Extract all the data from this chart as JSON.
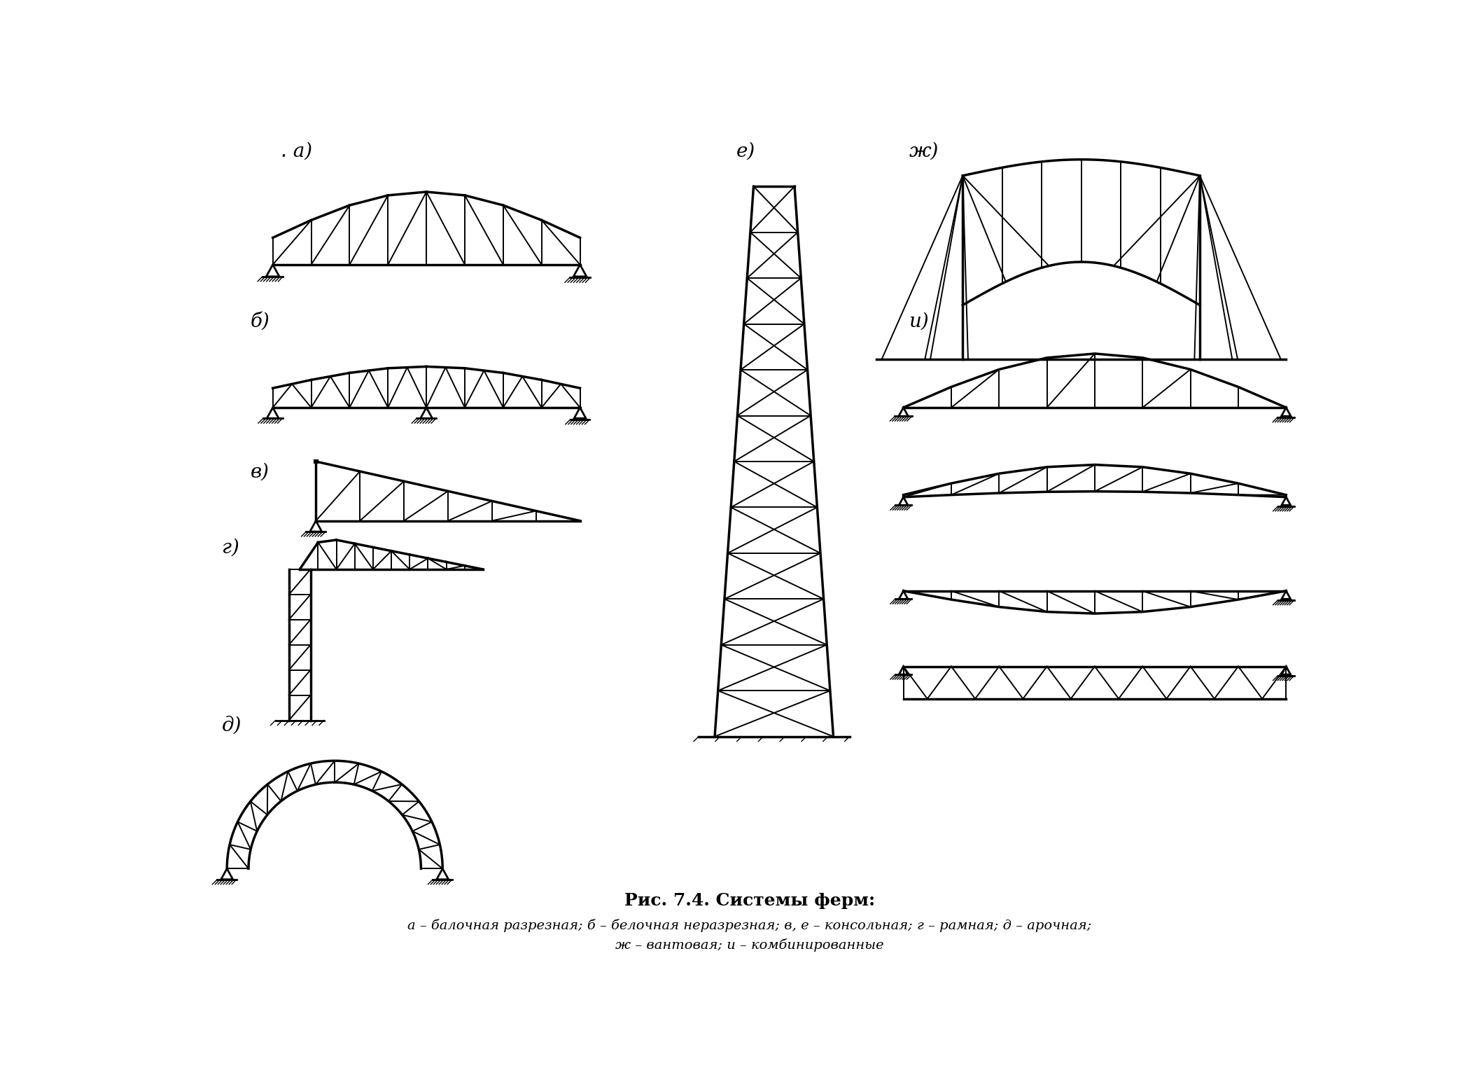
{
  "title": "Рис. 7.4. Системы ферм:",
  "caption_line1": "а – балочная разрезная; б – белочная неразрезная; в, е – консольная; г – рамная; д – арочная;",
  "caption_line2": "ж – вантовая; и – комбинированные",
  "labels": {
    "a": ". а)",
    "b": "б)",
    "v": "в)",
    "g": "г)",
    "d": "д)",
    "e": "е)",
    "zh": "ж)",
    "i": "и)"
  },
  "bg_color": "#ffffff",
  "line_color": "#000000",
  "title_fontsize": 18,
  "caption_fontsize": 14,
  "label_fontsize": 20
}
